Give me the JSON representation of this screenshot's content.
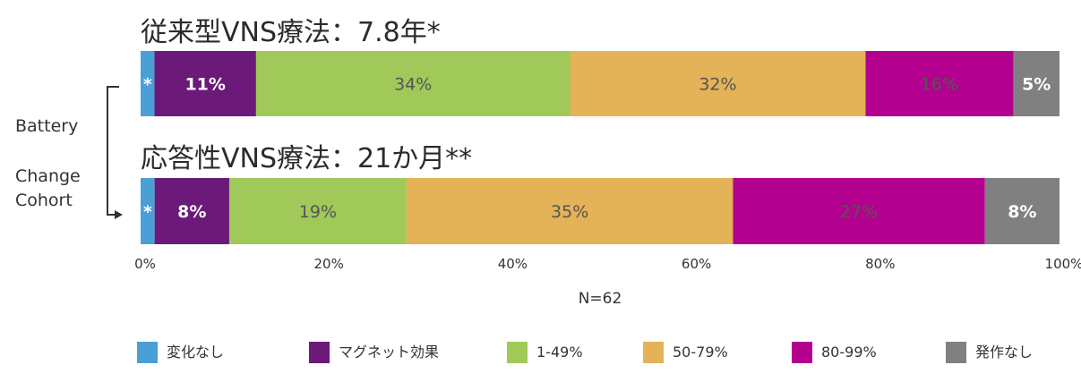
{
  "chart_data": {
    "type": "bar",
    "orientation": "horizontal-stacked",
    "categories": [
      "従来型VNS療法：7.8年*",
      "応答性VNS療法：21か月**"
    ],
    "series": [
      {
        "name": "変化なし",
        "color": "#4a9fd6",
        "values": [
          1.5,
          1.5
        ],
        "labels": [
          "*",
          "*"
        ]
      },
      {
        "name": "マグネット効果",
        "color": "#6b1a7a",
        "values": [
          11,
          8
        ],
        "labels": [
          "11%",
          "8%"
        ]
      },
      {
        "name": "1-49%",
        "color": "#a0c95a",
        "values": [
          34,
          19
        ],
        "labels": [
          "34%",
          "19%"
        ]
      },
      {
        "name": "50-79%",
        "color": "#e4b257",
        "values": [
          32,
          35
        ],
        "labels": [
          "32%",
          "35%"
        ]
      },
      {
        "name": "80-99%",
        "color": "#b3008f",
        "values": [
          16,
          27
        ],
        "labels": [
          "16%",
          "27%"
        ]
      },
      {
        "name": "発作なし",
        "color": "#808080",
        "values": [
          5,
          8
        ],
        "labels": [
          "5%",
          "8%"
        ]
      }
    ],
    "label_colors": [
      "#ffffff",
      "#ffffff",
      "#555555",
      "#555555",
      "#555555",
      "#ffffff"
    ],
    "label_bold": [
      true,
      true,
      false,
      false,
      false,
      true
    ],
    "x_ticks": [
      "0%",
      "20%",
      "40%",
      "60%",
      "80%",
      "100%"
    ],
    "xlim": [
      0,
      100
    ],
    "xlabel": "N=62",
    "side_labels": [
      "Battery",
      "Change",
      "Cohort"
    ],
    "grid": false,
    "legend_position": "bottom"
  }
}
